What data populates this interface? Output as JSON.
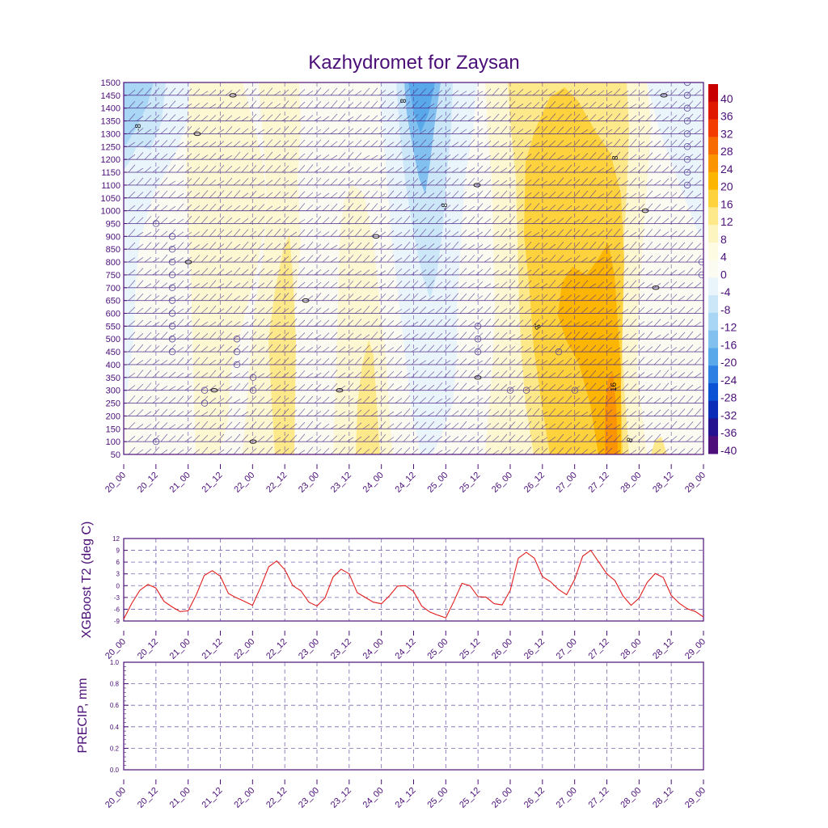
{
  "title": "Kazhydromet for Zaysan",
  "x_ticks": [
    "20_00",
    "20_12",
    "21_00",
    "21_12",
    "22_00",
    "22_12",
    "23_00",
    "23_12",
    "24_00",
    "24_12",
    "25_00",
    "25_12",
    "26_00",
    "26_12",
    "27_00",
    "27_12",
    "28_00",
    "28_12",
    "29_00"
  ],
  "colors": {
    "axis": "#4b0f78",
    "line": "#e21c1c",
    "grid": "#5a3d9a"
  },
  "chart_data": [
    {
      "type": "heatmap",
      "title": "Kazhydromet for Zaysan",
      "xlabel": "",
      "ylabel": "",
      "y_ticks": [
        1500,
        1450,
        1400,
        1350,
        1300,
        1250,
        1200,
        1150,
        1100,
        1050,
        1000,
        950,
        900,
        850,
        800,
        750,
        700,
        650,
        600,
        550,
        500,
        450,
        400,
        350,
        300,
        250,
        200,
        150,
        100,
        50
      ],
      "ylim": [
        50,
        1500
      ],
      "colorbar_labels": [
        "40",
        "36",
        "32",
        "28",
        "24",
        "20",
        "16",
        "12",
        "8",
        "4",
        "0",
        "-4",
        "-8",
        "-12",
        "-16",
        "-20",
        "-24",
        "-28",
        "-32",
        "-36",
        "-40"
      ],
      "colorbar_colors": [
        "#c80000",
        "#e01a00",
        "#f23c00",
        "#f76a00",
        "#fa9400",
        "#fcb500",
        "#fdd23c",
        "#fde98a",
        "#fdf5bf",
        "#fefbe3",
        "#fbfbf2",
        "#eaf4fb",
        "#cce7f8",
        "#a9d6f4",
        "#82c1ef",
        "#58a8ea",
        "#2e7fe3",
        "#0c52d4",
        "#0a2cb6",
        "#24128f",
        "#4d0f7a"
      ],
      "contour_labels": [
        "-8",
        "8",
        "-8",
        "-8",
        "8",
        "16",
        "8"
      ]
    },
    {
      "type": "line",
      "ylabel": "XGBoost T2 (deg C)",
      "y_ticks": [
        12,
        9,
        6,
        3,
        0,
        -3,
        -6,
        -9
      ],
      "ylim": [
        -9,
        12
      ],
      "x": [
        "20_00",
        "20_03",
        "20_06",
        "20_09",
        "20_12",
        "20_15",
        "20_18",
        "20_21",
        "21_00",
        "21_03",
        "21_06",
        "21_09",
        "21_12",
        "21_15",
        "21_18",
        "21_21",
        "22_00",
        "22_03",
        "22_06",
        "22_09",
        "22_12",
        "22_15",
        "22_18",
        "22_21",
        "23_00",
        "23_03",
        "23_06",
        "23_09",
        "23_12",
        "23_15",
        "23_18",
        "23_21",
        "24_00",
        "24_03",
        "24_06",
        "24_09",
        "24_12",
        "24_15",
        "24_18",
        "24_21",
        "25_00",
        "25_03",
        "25_06",
        "25_09",
        "25_12",
        "25_15",
        "25_18",
        "25_21",
        "26_00",
        "26_03",
        "26_06",
        "26_09",
        "26_12",
        "26_15",
        "26_18",
        "26_21",
        "27_00",
        "27_03",
        "27_06",
        "27_09",
        "27_12",
        "27_15",
        "27_18",
        "27_21",
        "28_00",
        "28_03",
        "28_06",
        "28_09",
        "28_12",
        "28_15",
        "28_18",
        "28_21",
        "29_00"
      ],
      "series": [
        {
          "values": [
            -8.5,
            -4.5,
            -1.2,
            0.3,
            -0.6,
            -4.0,
            -5.4,
            -6.6,
            -6.4,
            -2.4,
            2.6,
            3.8,
            2.4,
            -2.0,
            -3.1,
            -4.0,
            -5.0,
            -0.4,
            4.8,
            6.3,
            4.1,
            0.0,
            -1.3,
            -4.2,
            -5.2,
            -3.1,
            2.2,
            4.2,
            3.0,
            -1.8,
            -3.0,
            -4.2,
            -4.6,
            -2.6,
            -0.1,
            0.0,
            -1.5,
            -5.2,
            -6.7,
            -7.5,
            -8.2,
            -4.0,
            0.6,
            0.0,
            -2.8,
            -2.9,
            -4.6,
            -4.9,
            -1.2,
            7.0,
            8.5,
            7.0,
            2.3,
            1.0,
            -1.0,
            -2.3,
            1.6,
            7.5,
            9.0,
            6.0,
            3.0,
            1.3,
            -2.6,
            -5.0,
            -3.2,
            0.8,
            3.1,
            2.1,
            -2.5,
            -4.5,
            -5.9,
            -6.6,
            -8.0
          ]
        }
      ]
    },
    {
      "type": "line",
      "ylabel": "PRECIP, mm",
      "y_ticks": [
        "1.0",
        "0.8",
        "0.6",
        "0.4",
        "0.2",
        "0.0"
      ],
      "ylim": [
        0,
        1.0
      ],
      "series": []
    }
  ]
}
